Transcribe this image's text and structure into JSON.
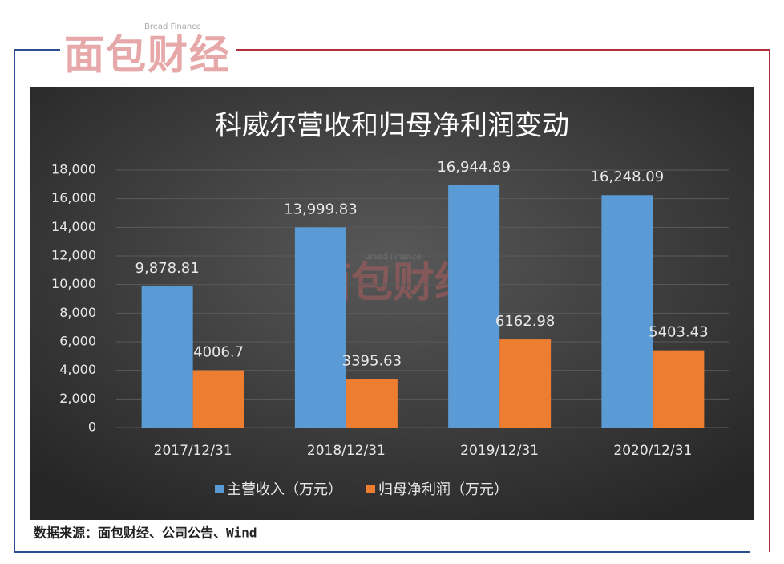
{
  "logo": {
    "text": "面包财经",
    "subtitle": "Bread Finance"
  },
  "chart_data": {
    "type": "bar",
    "title": "科威尔营收和归母净利润变动",
    "categories": [
      "2017/12/31",
      "2018/12/31",
      "2019/12/31",
      "2020/12/31"
    ],
    "series": [
      {
        "name": "主营收入（万元）",
        "color": "#5b9bd5",
        "values": [
          9878.81,
          13999.83,
          16944.89,
          16248.09
        ],
        "value_labels": [
          "9,878.81",
          "13,999.83",
          "16,944.89",
          "16,248.09"
        ]
      },
      {
        "name": "归母净利润（万元）",
        "color": "#ed7d31",
        "values": [
          4006.7,
          3395.63,
          6162.98,
          5403.43
        ]
      }
    ],
    "ylim": [
      0,
      18000
    ],
    "yticks": [
      0,
      {
        "value": 2000,
        "label": "2,000"
      },
      {
        "value": 4000,
        "label": "4,000"
      },
      {
        "value": 6000,
        "label": "6,000"
      },
      {
        "value": 8000,
        "label": "8,000"
      },
      {
        "value": 10000,
        "label": "10,000"
      },
      {
        "value": 12000,
        "label": "12,000"
      },
      {
        "value": 14000,
        "label": "14,000"
      },
      {
        "value": 16000,
        "label": "16,000"
      },
      {
        "value": 18000,
        "label": "18,000"
      }
    ],
    "grid": true,
    "legend": "bottom"
  },
  "source": "数据来源：面包财经、公司公告、Wind"
}
